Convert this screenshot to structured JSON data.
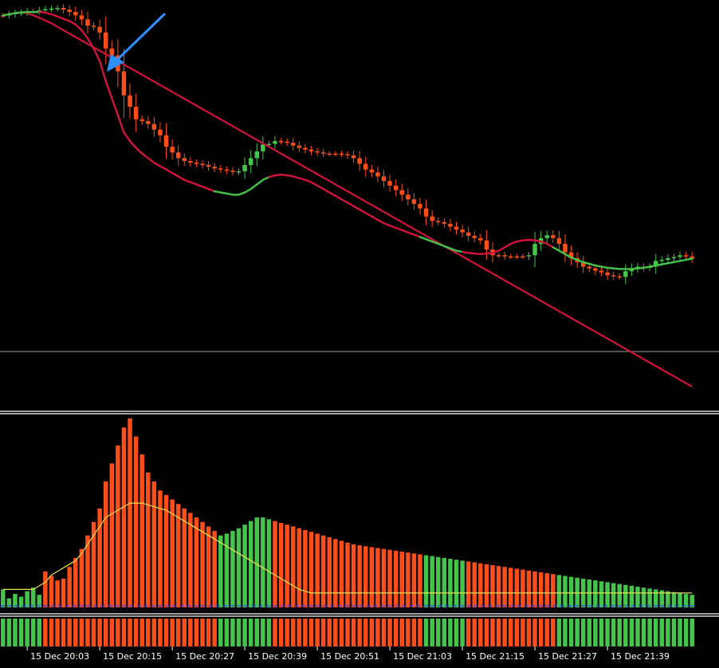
{
  "chart_data": {
    "type": "candlestick",
    "up_color": "#44C44B",
    "down_color": "#FF4E1A",
    "slow_ma_color": "#D2143C",
    "volume_avg_color": "#E8E050",
    "volume_baseline_color": "#2840FF",
    "arrow_color": "#2E8FFF",
    "grid_color": "#C8C8C8",
    "axis_text_color": "#FFFFFF",
    "x_labels": [
      "15 Dec 20:03",
      "15 Dec 20:15",
      "15 Dec 20:27",
      "15 Dec 20:39",
      "15 Dec 20:51",
      "15 Dec 21:03",
      "15 Dec 21:15",
      "15 Dec 21:27",
      "15 Dec 21:39"
    ],
    "x_label_bar_index": [
      4,
      16,
      28,
      40,
      52,
      64,
      76,
      88,
      100
    ],
    "price_close": [
      30,
      28,
      26,
      25,
      23,
      23,
      21,
      19,
      18,
      17,
      20,
      24,
      30,
      37,
      48,
      50,
      60,
      88,
      100,
      128,
      170,
      190,
      212,
      215,
      220,
      230,
      240,
      260,
      270,
      280,
      285,
      288,
      290,
      292,
      295,
      298,
      300,
      302,
      304,
      303,
      292,
      280,
      268,
      256,
      255,
      250,
      251,
      253,
      258,
      262,
      265,
      268,
      270,
      272,
      272,
      272,
      273,
      275,
      280,
      290,
      300,
      305,
      312,
      320,
      328,
      336,
      344,
      352,
      360,
      368,
      382,
      390,
      392,
      395,
      400,
      405,
      410,
      416,
      420,
      424,
      440,
      450,
      450,
      452,
      452,
      452,
      452,
      450,
      430,
      420,
      415,
      420,
      430,
      445,
      455,
      462,
      470,
      473,
      477,
      480,
      485,
      487,
      488,
      478,
      473,
      470,
      472,
      470,
      460,
      458,
      455,
      453,
      450,
      452,
      456
    ],
    "ma_fast": [
      30,
      28,
      26,
      25,
      24,
      24,
      24,
      25,
      28,
      32,
      36,
      40,
      46,
      56,
      70,
      88,
      110,
      145,
      175,
      205,
      235,
      250,
      262,
      272,
      280,
      288,
      294,
      300,
      306,
      312,
      318,
      322,
      326,
      330,
      334,
      338,
      340,
      342,
      344,
      344,
      340,
      334,
      326,
      318,
      313,
      310,
      309,
      310,
      312,
      315,
      318,
      322,
      328,
      334,
      340,
      346,
      352,
      358,
      364,
      370,
      376,
      382,
      388,
      394,
      398,
      402,
      406,
      410,
      414,
      418,
      422,
      426,
      430,
      434,
      438,
      442,
      444,
      446,
      447,
      448,
      447,
      446,
      442,
      436,
      430,
      426,
      424,
      423,
      424,
      426,
      430,
      436,
      442,
      448,
      454,
      458,
      462,
      465,
      468,
      470,
      472,
      473,
      474,
      474,
      474,
      473,
      472,
      470,
      468,
      466,
      464,
      462,
      460,
      458,
      456
    ],
    "ma_slow": [
      30,
      28,
      26,
      25,
      26,
      30,
      34,
      39,
      44,
      50,
      56,
      62,
      68,
      74,
      80,
      86,
      92,
      98,
      104,
      110,
      116,
      122,
      128,
      134,
      140,
      146,
      152,
      158,
      164,
      170,
      176,
      182,
      188,
      194,
      200,
      206,
      212,
      218,
      224,
      230,
      236,
      242,
      248,
      254,
      260,
      266,
      272,
      278,
      284,
      290,
      296,
      302,
      308,
      314,
      320,
      326,
      332,
      338,
      344,
      350,
      356,
      362,
      368,
      374,
      380,
      386,
      392,
      398,
      404,
      410,
      416,
      422,
      428,
      434,
      440,
      446,
      452,
      458,
      464,
      470,
      476,
      482,
      488,
      494,
      500,
      506,
      512,
      518,
      524,
      530,
      536,
      542,
      548,
      554,
      560,
      566,
      572,
      578,
      584,
      590,
      596,
      602,
      608,
      614,
      620,
      626,
      632,
      638,
      644,
      650,
      656,
      662,
      668,
      674,
      680
    ],
    "volume": [
      20,
      10,
      15,
      12,
      18,
      22,
      14,
      40,
      35,
      30,
      32,
      45,
      55,
      65,
      80,
      95,
      110,
      140,
      160,
      180,
      200,
      210,
      190,
      170,
      150,
      140,
      130,
      125,
      120,
      115,
      110,
      105,
      100,
      95,
      90,
      85,
      80,
      82,
      85,
      88,
      92,
      96,
      100,
      100,
      98,
      96,
      94,
      92,
      90,
      88,
      86,
      84,
      82,
      80,
      78,
      76,
      74,
      72,
      70,
      69,
      68,
      67,
      66,
      65,
      64,
      63,
      62,
      61,
      60,
      59,
      58,
      57,
      56,
      55,
      54,
      53,
      52,
      51,
      50,
      49,
      48,
      47,
      46,
      45,
      44,
      43,
      42,
      41,
      40,
      39,
      38,
      37,
      36,
      35,
      34,
      33,
      32,
      31,
      30,
      29,
      28,
      27,
      26,
      25,
      24,
      23,
      22,
      21,
      20,
      19,
      18,
      17,
      16,
      15,
      14
    ],
    "volume_avg": [
      10,
      10,
      10,
      10,
      10,
      10,
      12,
      14,
      18,
      20,
      22,
      24,
      26,
      30,
      35,
      40,
      45,
      50,
      52,
      54,
      56,
      58,
      58,
      58,
      57,
      56,
      55,
      54,
      52,
      50,
      48,
      46,
      44,
      42,
      40,
      38,
      36,
      34,
      32,
      30,
      28,
      26,
      24,
      22,
      20,
      18,
      16,
      14,
      12,
      10,
      9,
      8,
      8,
      8,
      8,
      8,
      8,
      8,
      8,
      8,
      8,
      8,
      8,
      8,
      8,
      8,
      8,
      8,
      8,
      8,
      8,
      8,
      8,
      8,
      8,
      8,
      8,
      8,
      8,
      8,
      8,
      8,
      8,
      8,
      8,
      8,
      8,
      8,
      8,
      8,
      8,
      8,
      8,
      8,
      8,
      8,
      8,
      8,
      8,
      8,
      8,
      8,
      8,
      8,
      8,
      8,
      8,
      8,
      8,
      8,
      8,
      8,
      8,
      8,
      8
    ],
    "trend": [
      1,
      1,
      1,
      1,
      1,
      1,
      1,
      0,
      0,
      0,
      0,
      0,
      0,
      0,
      0,
      0,
      0,
      0,
      0,
      0,
      0,
      0,
      0,
      0,
      0,
      0,
      0,
      0,
      0,
      0,
      0,
      0,
      0,
      0,
      0,
      0,
      1,
      1,
      1,
      1,
      1,
      1,
      1,
      1,
      1,
      0,
      0,
      0,
      0,
      0,
      0,
      0,
      0,
      0,
      0,
      0,
      0,
      0,
      0,
      0,
      0,
      0,
      0,
      0,
      0,
      0,
      0,
      0,
      0,
      0,
      1,
      1,
      1,
      1,
      1,
      1,
      1,
      0,
      0,
      0,
      0,
      0,
      0,
      0,
      0,
      0,
      0,
      0,
      0,
      0,
      0,
      0,
      1,
      1,
      1,
      1,
      1,
      1,
      1,
      1,
      1,
      1,
      1,
      1,
      1,
      1,
      1,
      1,
      1,
      1,
      1,
      1,
      1,
      1,
      1
    ]
  }
}
